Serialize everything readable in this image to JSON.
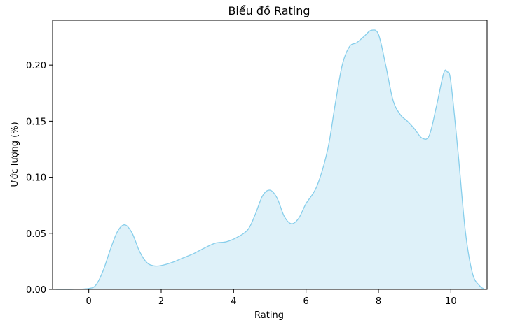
{
  "chart_data": {
    "type": "area",
    "title": "Biểu đồ Rating",
    "xlabel": "Rating",
    "ylabel": "Ước lượng (%)",
    "xlim": [
      -1.0,
      11.0
    ],
    "ylim": [
      0.0,
      0.24
    ],
    "x_ticks": [
      0,
      2,
      4,
      6,
      8,
      10
    ],
    "x_tick_labels": [
      "0",
      "2",
      "4",
      "6",
      "8",
      "10"
    ],
    "y_ticks": [
      0.0,
      0.05,
      0.1,
      0.15,
      0.2
    ],
    "y_tick_labels": [
      "0.00",
      "0.05",
      "0.10",
      "0.15",
      "0.20"
    ],
    "grid": false,
    "line_color": "#87ceeb",
    "fill_color": "#87ceeb",
    "fill_opacity": 0.28,
    "series": [
      {
        "x": [
          -0.9,
          -0.5,
          0.0,
          0.2,
          0.4,
          0.6,
          0.8,
          1.0,
          1.2,
          1.4,
          1.6,
          1.8,
          2.0,
          2.3,
          2.6,
          2.9,
          3.2,
          3.5,
          3.8,
          4.1,
          4.4,
          4.6,
          4.8,
          5.0,
          5.2,
          5.4,
          5.6,
          5.8,
          6.0,
          6.3,
          6.6,
          6.8,
          7.0,
          7.2,
          7.4,
          7.6,
          7.8,
          8.0,
          8.2,
          8.4,
          8.6,
          8.8,
          9.0,
          9.2,
          9.4,
          9.6,
          9.8,
          9.9,
          10.0,
          10.2,
          10.4,
          10.6,
          10.8,
          10.9
        ],
        "y": [
          0.0,
          0.0,
          0.0008,
          0.004,
          0.017,
          0.036,
          0.052,
          0.0575,
          0.05,
          0.034,
          0.024,
          0.021,
          0.0213,
          0.024,
          0.028,
          0.032,
          0.037,
          0.0413,
          0.0425,
          0.0465,
          0.0535,
          0.067,
          0.0835,
          0.0885,
          0.0815,
          0.065,
          0.0585,
          0.0635,
          0.0765,
          0.092,
          0.125,
          0.164,
          0.2,
          0.2165,
          0.22,
          0.2255,
          0.231,
          0.2275,
          0.2,
          0.169,
          0.156,
          0.15,
          0.143,
          0.135,
          0.137,
          0.163,
          0.1925,
          0.194,
          0.185,
          0.122,
          0.052,
          0.014,
          0.003,
          0.0008
        ]
      }
    ]
  }
}
